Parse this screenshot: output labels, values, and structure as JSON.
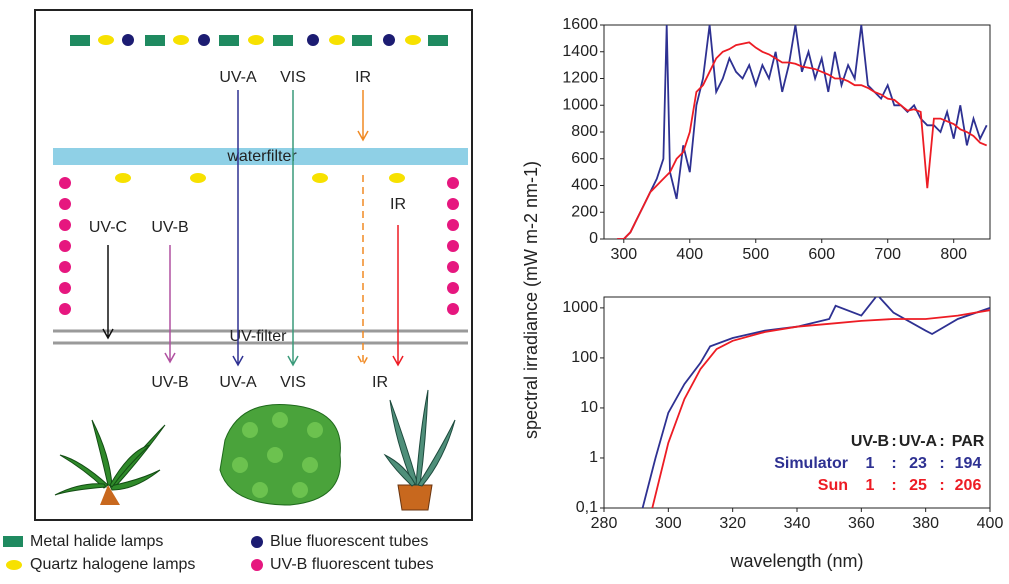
{
  "diagram": {
    "top_labels": [
      "UV-A",
      "VIS",
      "IR"
    ],
    "waterfilter": "waterfilter",
    "middle_labels": [
      "UV-C",
      "UV-B",
      "IR"
    ],
    "uv_filter": "UV-filter",
    "bottom_labels": [
      "UV-B",
      "UV-A",
      "VIS",
      "IR"
    ]
  },
  "legend": [
    "Metal halide lamps",
    "Quartz halogene lamps",
    "Blue fluorescent tubes",
    "UV-B fluorescent tubes"
  ],
  "y_label": "spectral irradiance (mW m-2 nm-1)",
  "chart_data": [
    {
      "type": "line",
      "xlim": [
        270,
        855
      ],
      "xticks": [
        300,
        400,
        500,
        600,
        700,
        800
      ],
      "ylim": [
        0,
        1600
      ],
      "yticks": [
        0,
        200,
        400,
        600,
        800,
        1000,
        1200,
        1400,
        1600
      ],
      "series": [
        {
          "color": "#2e3192",
          "x": [
            290,
            300,
            310,
            320,
            330,
            340,
            350,
            360,
            365,
            370,
            380,
            390,
            400,
            410,
            420,
            430,
            440,
            450,
            460,
            470,
            480,
            490,
            500,
            510,
            520,
            530,
            540,
            550,
            560,
            570,
            580,
            590,
            600,
            610,
            620,
            630,
            640,
            650,
            660,
            670,
            680,
            690,
            700,
            710,
            720,
            730,
            740,
            750,
            760,
            770,
            780,
            790,
            800,
            810,
            820,
            830,
            840,
            850
          ],
          "values": [
            0,
            0,
            50,
            150,
            250,
            350,
            450,
            600,
            1600,
            500,
            300,
            700,
            500,
            1000,
            1200,
            1600,
            1100,
            1200,
            1350,
            1250,
            1200,
            1300,
            1150,
            1300,
            1200,
            1400,
            1100,
            1300,
            1600,
            1250,
            1400,
            1200,
            1350,
            1100,
            1400,
            1150,
            1300,
            1200,
            1600,
            1150,
            1100,
            1050,
            1150,
            1000,
            1000,
            950,
            1000,
            900,
            850,
            850,
            800,
            950,
            750,
            1000,
            700,
            900,
            750,
            850
          ]
        },
        {
          "color": "#ed1c24",
          "x": [
            290,
            300,
            310,
            320,
            330,
            340,
            350,
            360,
            370,
            380,
            390,
            400,
            410,
            420,
            430,
            440,
            450,
            460,
            470,
            480,
            490,
            500,
            510,
            520,
            530,
            540,
            550,
            560,
            570,
            580,
            590,
            600,
            610,
            620,
            630,
            640,
            650,
            660,
            670,
            680,
            690,
            700,
            710,
            720,
            730,
            740,
            750,
            760,
            770,
            780,
            790,
            800,
            810,
            820,
            830,
            840,
            850
          ],
          "values": [
            0,
            0,
            50,
            150,
            250,
            350,
            400,
            450,
            500,
            600,
            650,
            800,
            1100,
            1150,
            1250,
            1350,
            1400,
            1420,
            1450,
            1460,
            1470,
            1430,
            1400,
            1380,
            1350,
            1320,
            1320,
            1310,
            1290,
            1280,
            1270,
            1250,
            1230,
            1200,
            1200,
            1180,
            1150,
            1150,
            1130,
            1100,
            1080,
            1050,
            1040,
            1000,
            960,
            970,
            950,
            380,
            900,
            900,
            880,
            860,
            820,
            800,
            770,
            720,
            700
          ]
        }
      ]
    },
    {
      "type": "line",
      "log_y": true,
      "x_label": "wavelength (nm)",
      "xlim": [
        280,
        400
      ],
      "xticks": [
        280,
        300,
        320,
        340,
        360,
        380,
        400
      ],
      "ylim": [
        0.1,
        1650
      ],
      "yticks": [
        {
          "value": 0.1,
          "label": "0,1"
        },
        1,
        10,
        100,
        1000
      ],
      "series": [
        {
          "name": "Simulator",
          "color": "#2e3192",
          "x": [
            292,
            296,
            300,
            305,
            310,
            313,
            320,
            330,
            340,
            350,
            352,
            360,
            365,
            370,
            380,
            382,
            390,
            400
          ],
          "values": [
            0.1,
            1,
            8,
            30,
            80,
            170,
            250,
            350,
            420,
            600,
            1100,
            700,
            1800,
            800,
            350,
            300,
            600,
            1000
          ]
        },
        {
          "name": "Sun",
          "color": "#ed1c24",
          "x": [
            295,
            300,
            305,
            310,
            315,
            320,
            330,
            340,
            350,
            360,
            370,
            380,
            390,
            400
          ],
          "values": [
            0.1,
            2,
            15,
            60,
            150,
            220,
            330,
            420,
            480,
            550,
            600,
            600,
            700,
            900
          ]
        }
      ],
      "ratio_table": {
        "header": [
          "UV-B",
          "UV-A",
          "PAR"
        ],
        "separator": ":",
        "rows": [
          [
            1,
            23,
            194
          ],
          [
            1,
            25,
            206
          ]
        ]
      }
    }
  ]
}
